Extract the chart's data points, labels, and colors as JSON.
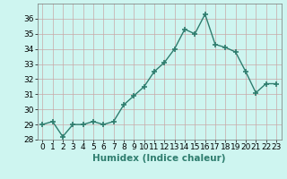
{
  "x": [
    0,
    1,
    2,
    3,
    4,
    5,
    6,
    7,
    8,
    9,
    10,
    11,
    12,
    13,
    14,
    15,
    16,
    17,
    18,
    19,
    20,
    21,
    22,
    23
  ],
  "y": [
    29,
    29.2,
    28.2,
    29,
    29,
    29.2,
    29,
    29.2,
    30.3,
    30.9,
    31.5,
    32.5,
    33.1,
    34.0,
    35.3,
    35.0,
    36.3,
    34.3,
    34.1,
    33.8,
    32.5,
    31.1,
    31.7,
    31.7
  ],
  "line_color": "#2e7d6e",
  "marker": "+",
  "marker_size": 5,
  "bg_color": "#cef5f0",
  "grid_color": "#c8a8a8",
  "xlabel": "Humidex (Indice chaleur)",
  "ylim": [
    28,
    37
  ],
  "xlim": [
    -0.5,
    23.5
  ],
  "yticks": [
    28,
    29,
    30,
    31,
    32,
    33,
    34,
    35,
    36
  ],
  "xticks": [
    0,
    1,
    2,
    3,
    4,
    5,
    6,
    7,
    8,
    9,
    10,
    11,
    12,
    13,
    14,
    15,
    16,
    17,
    18,
    19,
    20,
    21,
    22,
    23
  ],
  "xlabel_fontsize": 7.5,
  "tick_fontsize": 6.5,
  "line_width": 1.0
}
